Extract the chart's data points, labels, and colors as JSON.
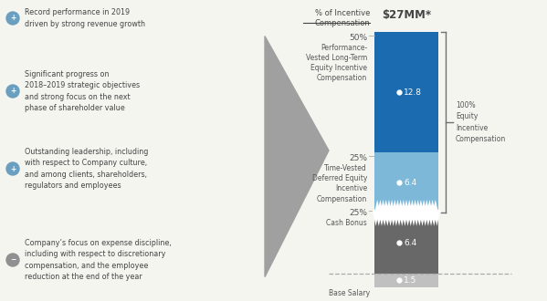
{
  "bg_color": "#f5f5f0",
  "segments": [
    {
      "label": "Base Salary",
      "value": 1.5,
      "color": "#c0c0c0",
      "pct": null
    },
    {
      "label": "Cash Bonus",
      "value": 6.4,
      "color": "#686868",
      "pct": "25%"
    },
    {
      "label": "Time-Vested\nDeferred Equity\nIncentive\nCompensation",
      "value": 6.4,
      "color": "#7db8d8",
      "pct": "25%"
    },
    {
      "label": "Performance-\nVested Long-Term\nEquity Incentive\nCompensation",
      "value": 12.8,
      "color": "#1a6bb0",
      "pct": "50%"
    }
  ],
  "title_left": "% of Incentive\nCompensation",
  "title_right": "$27MM*",
  "arrow_color": "#a0a0a0",
  "bracket_color": "#707070",
  "dashed_line_color": "#aaaaaa",
  "brace_label": "100%\nEquity\nIncentive\nCompensation",
  "bullet_items": [
    {
      "symbol": "+",
      "color": "#6a9fc0",
      "text": "Record performance in 2019\ndriven by strong revenue growth"
    },
    {
      "symbol": "+",
      "color": "#6a9fc0",
      "text": "Significant progress on\n2018–2019 strategic objectives\nand strong focus on the next\nphase of shareholder value"
    },
    {
      "symbol": "+",
      "color": "#6a9fc0",
      "text": "Outstanding leadership, including\nwith respect to Company culture,\nand among clients, shareholders,\nregulators and employees"
    },
    {
      "symbol": "−",
      "color": "#909090",
      "text": "Company’s focus on expense discipline,\nincluding with respect to discretionary\ncompensation, and the employee\nreduction at the end of the year"
    }
  ],
  "text_color": "#444444",
  "label_color": "#555555"
}
